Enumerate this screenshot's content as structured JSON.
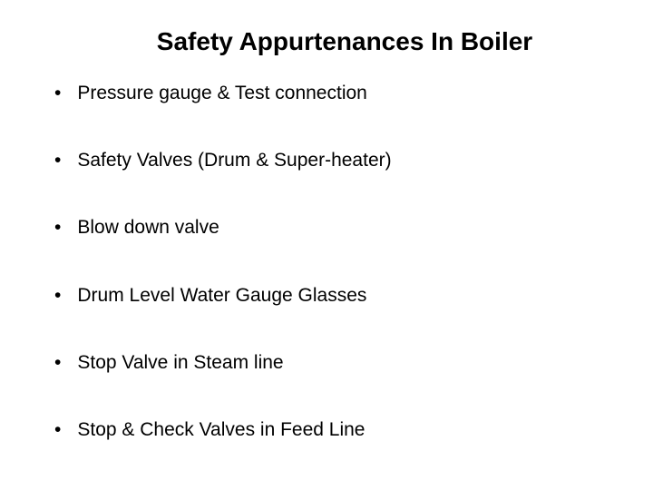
{
  "slide": {
    "title": "Safety Appurtenances In Boiler",
    "title_fontsize": 28,
    "title_fontweight": "bold",
    "title_color": "#000000",
    "bullets": [
      "Pressure gauge & Test connection",
      "Safety Valves (Drum & Super-heater)",
      "Blow down valve",
      "Drum Level Water Gauge Glasses",
      "Stop Valve in Steam line",
      "Stop & Check Valves in Feed Line"
    ],
    "bullet_fontsize": 21,
    "bullet_color": "#000000",
    "bullet_marker": "•",
    "bullet_spacing": 49,
    "background_color": "#ffffff",
    "font_family": "Arial"
  }
}
